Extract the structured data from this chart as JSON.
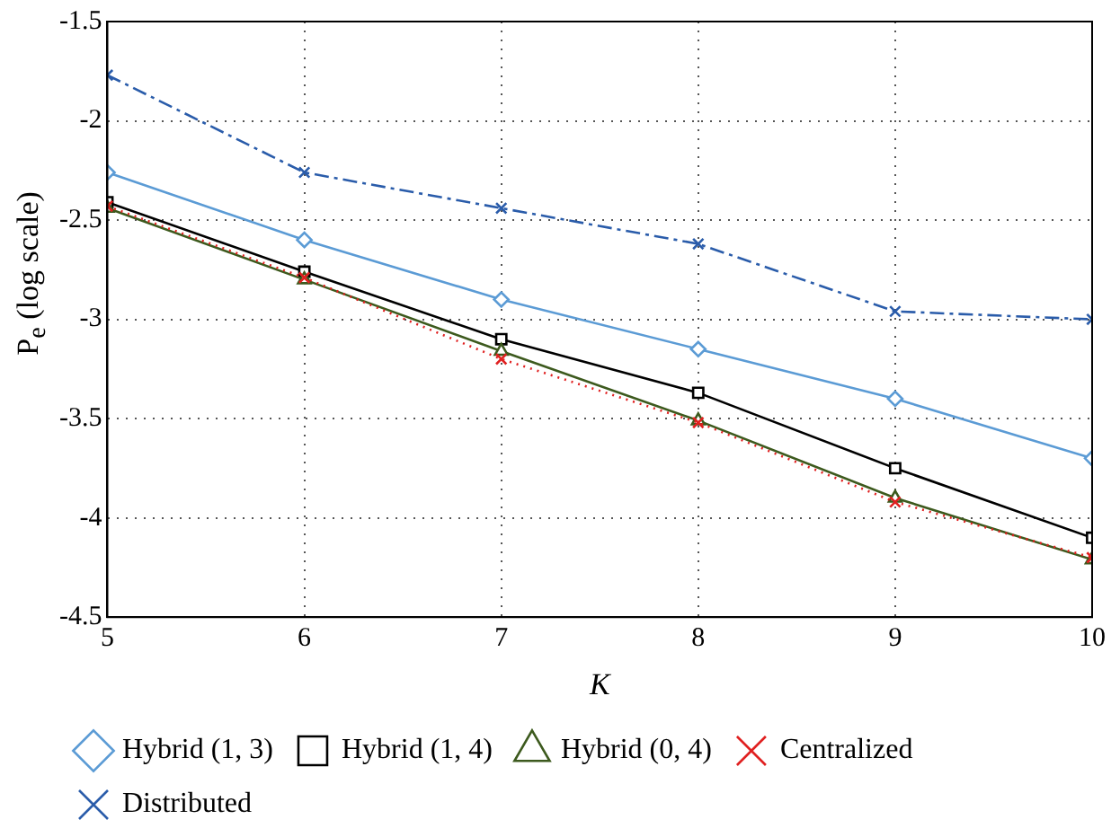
{
  "chart_data": {
    "type": "line",
    "xlabel": "K",
    "ylabel": "P$_{e}$ (log scale)",
    "x": [
      5,
      6,
      7,
      8,
      9,
      10
    ],
    "series": [
      {
        "name": "Hybrid (1, 3)",
        "color": "#5b9bd5",
        "marker": "diamond",
        "line_style": "solid",
        "values": [
          -2.26,
          -2.6,
          -2.9,
          -3.15,
          -3.4,
          -3.7
        ]
      },
      {
        "name": "Hybrid (1, 4)",
        "color": "#000000",
        "marker": "square",
        "line_style": "solid",
        "values": [
          -2.41,
          -2.76,
          -3.1,
          -3.37,
          -3.75,
          -4.1
        ]
      },
      {
        "name": "Hybrid (0, 4)",
        "color": "#3d5a1e",
        "marker": "triangle",
        "line_style": "solid",
        "values": [
          -2.44,
          -2.8,
          -3.16,
          -3.51,
          -3.9,
          -4.21
        ]
      },
      {
        "name": "Centralized",
        "color": "#e02020",
        "marker": "cross",
        "line_style": "dotted",
        "values": [
          -2.43,
          -2.79,
          -3.2,
          -3.52,
          -3.92,
          -4.2
        ]
      },
      {
        "name": "Distributed",
        "color": "#2a5caa",
        "marker": "cross",
        "line_style": "dashdot",
        "values": [
          -1.77,
          -2.26,
          -2.44,
          -2.62,
          -2.96,
          -3.0
        ]
      }
    ],
    "xlim": [
      5,
      10
    ],
    "xticks": [
      5,
      6,
      7,
      8,
      9,
      10
    ],
    "ylim": [
      -4.5,
      -1.5
    ],
    "yticks": [
      -4.5,
      -4,
      -3.5,
      -3,
      -2.5,
      -2,
      -1.5
    ],
    "grid": true,
    "legend": "bottom"
  }
}
